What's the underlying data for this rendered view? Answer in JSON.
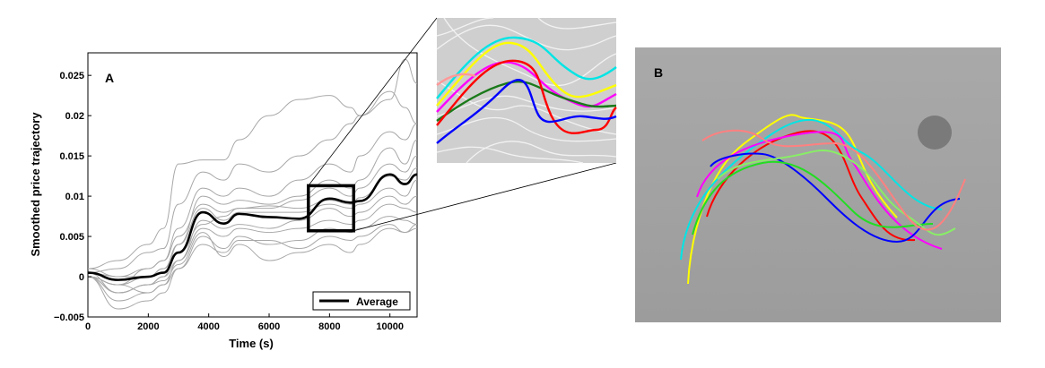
{
  "chart_data": [
    {
      "type": "line",
      "panel_label": "A",
      "xlabel": "Time (s)",
      "ylabel": "Smoothed price trajectory",
      "xlim": [
        0,
        10900
      ],
      "ylim": [
        -0.005,
        0.0278
      ],
      "xticks": [
        0,
        2000,
        4000,
        6000,
        8000,
        10000
      ],
      "xtick_labels": [
        "0",
        "2000",
        "4000",
        "6000",
        "8000",
        "10000"
      ],
      "yticks": [
        -0.005,
        0,
        0.005,
        0.01,
        0.015,
        0.02,
        0.025
      ],
      "ytick_labels": [
        "−0.005",
        "0",
        "0.005",
        "0.01",
        "0.015",
        "0.02",
        "0.025"
      ],
      "legend": {
        "entries": [
          "Average"
        ],
        "placement": "bottom-right"
      },
      "zoom_box": {
        "x": [
          7300,
          8800
        ],
        "y": [
          0.0057,
          0.0113
        ]
      },
      "x": [
        0,
        1000,
        2000,
        2500,
        3000,
        3800,
        4500,
        5000,
        6000,
        7000,
        8000,
        8700,
        9000,
        10000,
        10500,
        10900
      ],
      "average": {
        "name": "Average",
        "color": "#000000",
        "values": [
          0.0005,
          -0.0004,
          0.0,
          0.0005,
          0.003,
          0.008,
          0.0066,
          0.0078,
          0.0074,
          0.0072,
          0.0097,
          0.0092,
          0.0094,
          0.0127,
          0.0115,
          0.0127
        ]
      },
      "series_color": "#a8a8a8",
      "series": [
        [
          0.001,
          0.002,
          0.004,
          0.006,
          0.014,
          0.0145,
          0.0145,
          0.017,
          0.02,
          0.022,
          0.0225,
          0.021,
          0.02,
          0.023,
          0.021,
          0.019
        ],
        [
          0.0005,
          0.001,
          0.003,
          0.0035,
          0.009,
          0.013,
          0.012,
          0.014,
          0.013,
          0.015,
          0.017,
          0.019,
          0.02,
          0.022,
          0.027,
          0.024
        ],
        [
          0.0,
          -0.001,
          0.001,
          0.002,
          0.006,
          0.011,
          0.01,
          0.011,
          0.01,
          0.012,
          0.014,
          0.013,
          0.015,
          0.018,
          0.017,
          0.019
        ],
        [
          0.0,
          -0.002,
          -0.001,
          0.0,
          0.004,
          0.01,
          0.009,
          0.0095,
          0.009,
          0.01,
          0.012,
          0.011,
          0.012,
          0.016,
          0.014,
          0.017
        ],
        [
          0.001,
          0.0,
          0.001,
          0.002,
          0.005,
          0.009,
          0.008,
          0.0085,
          0.0085,
          0.0095,
          0.011,
          0.01,
          0.011,
          0.014,
          0.013,
          0.015
        ],
        [
          0.0,
          -0.001,
          0.0,
          0.001,
          0.004,
          0.0085,
          0.007,
          0.008,
          0.008,
          0.008,
          0.009,
          0.0085,
          0.009,
          0.011,
          0.01,
          0.012
        ],
        [
          0.0,
          -0.003,
          -0.002,
          -0.001,
          0.002,
          0.007,
          0.006,
          0.0065,
          0.006,
          0.007,
          0.0085,
          0.0075,
          0.008,
          0.01,
          0.009,
          0.01
        ],
        [
          0.0005,
          -0.002,
          -0.001,
          0.0,
          0.002,
          0.006,
          0.005,
          0.006,
          0.0055,
          0.006,
          0.007,
          0.0065,
          0.007,
          0.009,
          0.0085,
          0.008
        ],
        [
          0.0,
          -0.004,
          -0.003,
          -0.002,
          0.001,
          0.005,
          0.0035,
          0.005,
          0.004,
          0.0045,
          0.006,
          0.0055,
          0.006,
          0.0075,
          0.007,
          0.0065
        ],
        [
          0.0,
          -0.001,
          -0.002,
          -0.001,
          0.001,
          0.004,
          0.003,
          0.0045,
          0.0045,
          0.0035,
          0.005,
          0.0045,
          0.005,
          0.0065,
          0.0055,
          0.006
        ],
        [
          0.0005,
          0.0,
          0.0,
          0.001,
          0.003,
          0.0065,
          0.0075,
          0.0085,
          0.0088,
          0.0085,
          0.0095,
          0.009,
          0.0098,
          0.0125,
          0.012,
          0.0135
        ],
        [
          0.0,
          -0.002,
          -0.001,
          -0.0005,
          0.0015,
          0.0055,
          0.0025,
          0.004,
          0.002,
          0.003,
          0.004,
          0.003,
          0.004,
          0.006,
          0.0055,
          0.0065
        ]
      ]
    }
  ],
  "panel_b": {
    "label": "B",
    "track_colors": [
      "#ffff00",
      "#00e5e5",
      "#ff0000",
      "#ff00ff",
      "#0000ff",
      "#22dd22",
      "#88ee66",
      "#ff8080"
    ]
  }
}
